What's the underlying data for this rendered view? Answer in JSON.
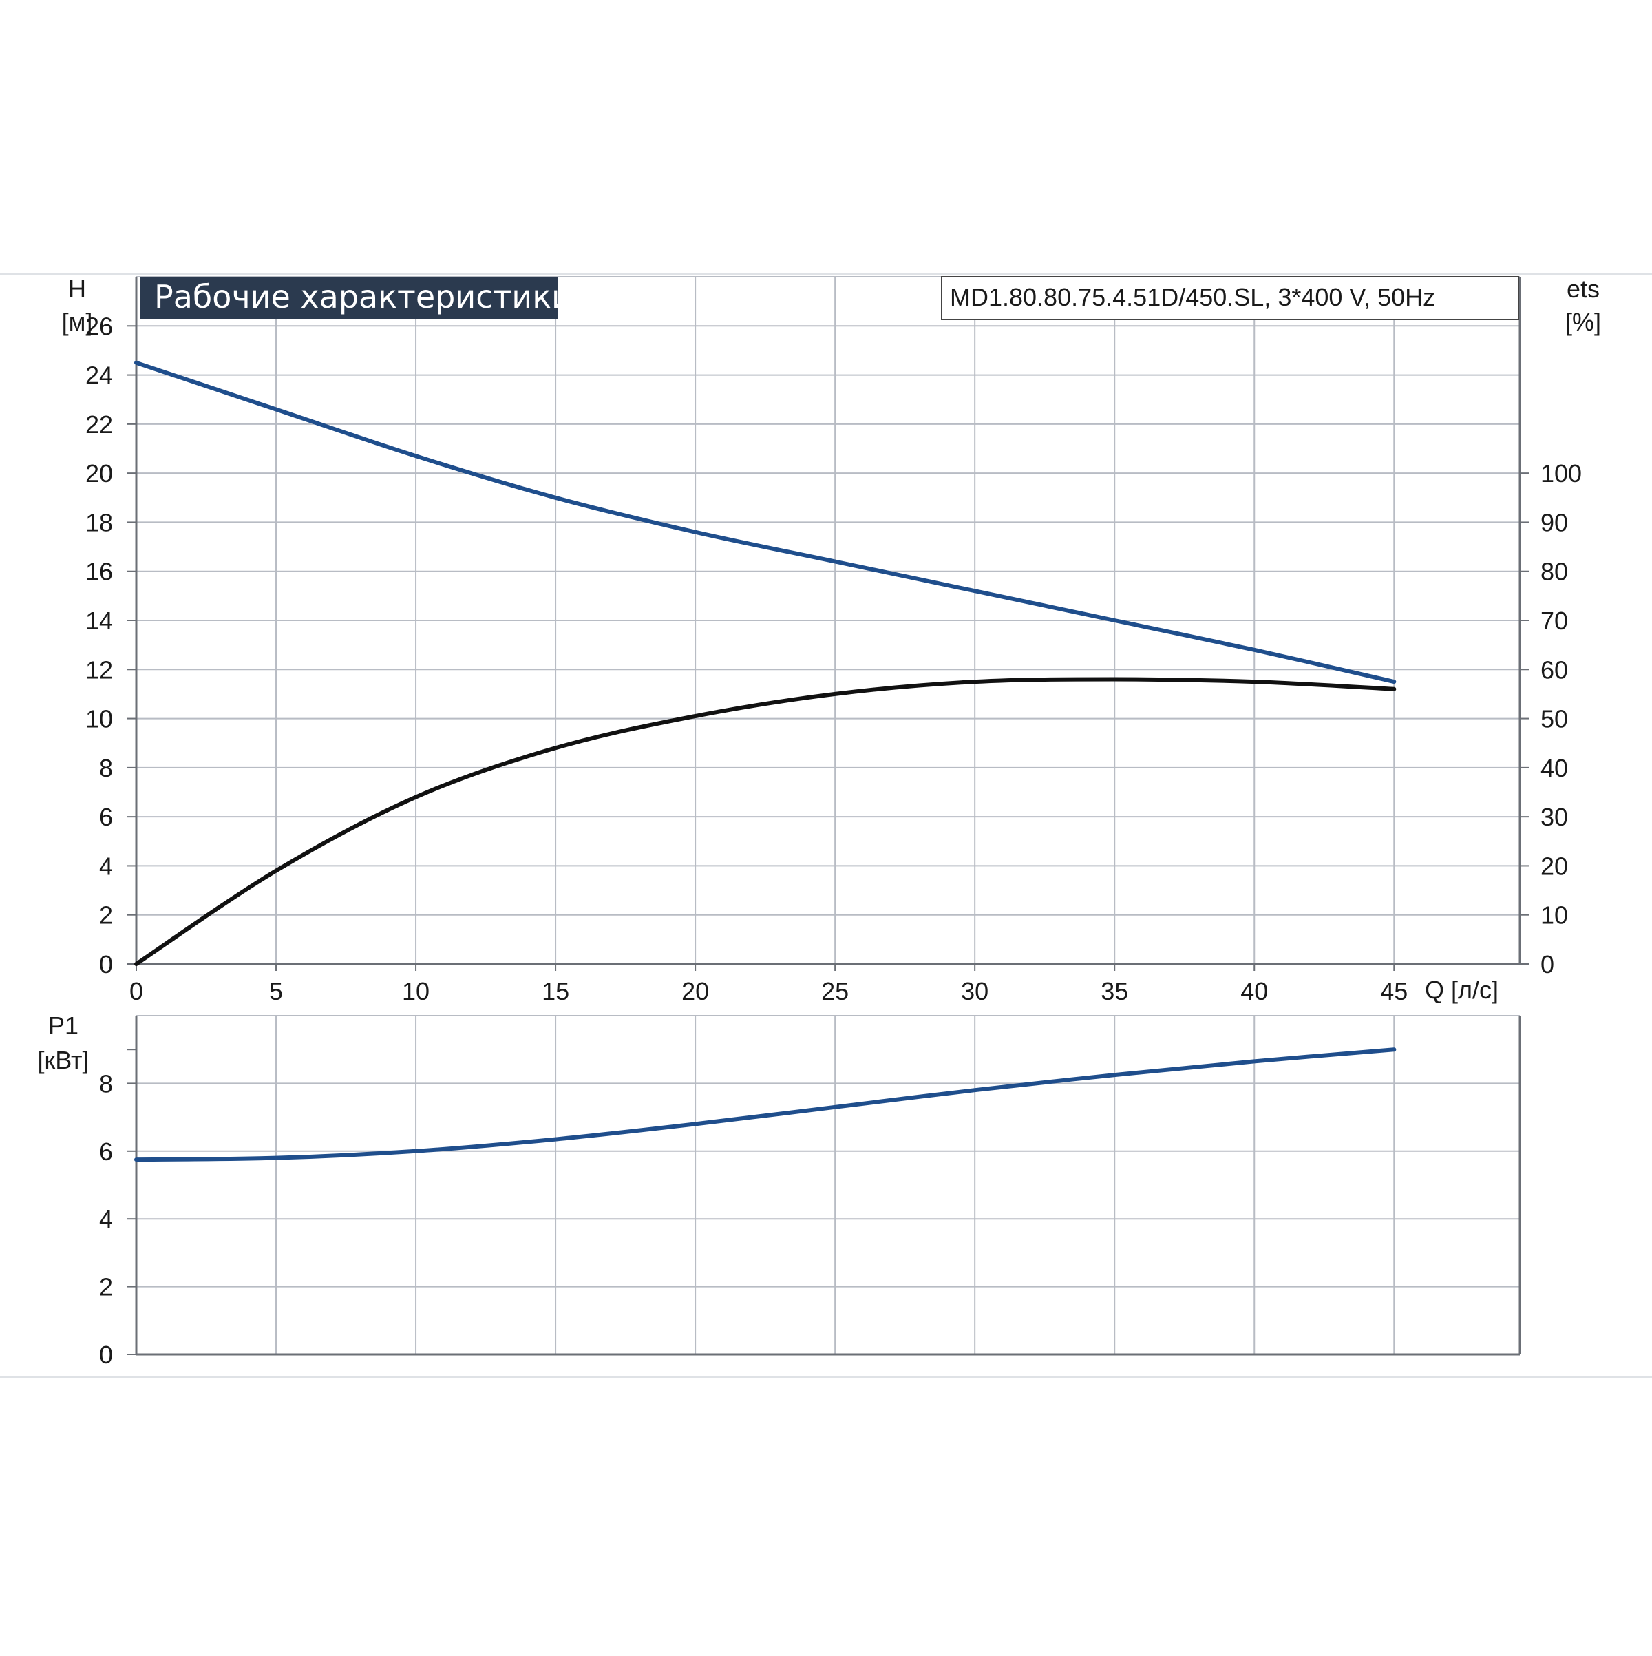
{
  "header": {
    "title": "Рабочие характеристики",
    "model": "MD1.80.80.75.4.51D/450.SL, 3*400 V, 50Hz"
  },
  "colors": {
    "head_curve": "#1f4e8c",
    "efficiency_curve": "#111111",
    "power_curve": "#1f4e8c",
    "title_bg": "#2b3a4f",
    "grid": "#b8bcc4",
    "frame": "#6b6f76"
  },
  "chart_data": [
    {
      "type": "line",
      "name": "performance-chart",
      "x_axis": {
        "label": "Q [л/с]",
        "range": [
          0,
          49.5
        ],
        "ticks": [
          0,
          5,
          10,
          15,
          20,
          25,
          30,
          35,
          40,
          45
        ]
      },
      "y_axis_left": {
        "label_top": "H",
        "label_unit": "[м]",
        "range": [
          0,
          28
        ],
        "ticks": [
          0,
          2,
          4,
          6,
          8,
          10,
          12,
          14,
          16,
          18,
          20,
          22,
          24,
          26
        ]
      },
      "y_axis_right": {
        "label_top": "ets",
        "label_unit": "[%]",
        "range": [
          0,
          140
        ],
        "ticks": [
          0,
          10,
          20,
          30,
          40,
          50,
          60,
          70,
          80,
          90,
          100
        ]
      },
      "grid": true,
      "series": [
        {
          "axis": "left",
          "x": [
            0,
            5,
            10,
            15,
            20,
            25,
            30,
            35,
            40,
            45
          ],
          "y": [
            24.5,
            22.6,
            20.7,
            19.0,
            17.6,
            16.4,
            15.2,
            14.0,
            12.8,
            11.5
          ]
        },
        {
          "axis": "right",
          "x": [
            0,
            5,
            10,
            15,
            20,
            25,
            30,
            35,
            40,
            45
          ],
          "y": [
            0,
            19,
            34,
            44,
            50.5,
            55,
            57.5,
            58,
            57.5,
            56
          ]
        }
      ]
    },
    {
      "type": "line",
      "name": "power-chart",
      "x_axis": {
        "range": [
          0,
          49.5
        ],
        "ticks": [
          0,
          5,
          10,
          15,
          20,
          25,
          30,
          35,
          40,
          45
        ]
      },
      "y_axis_left": {
        "label_top": "P1",
        "label_unit": "[кВт]",
        "range": [
          0,
          10
        ],
        "ticks": [
          0,
          2,
          4,
          6,
          8
        ]
      },
      "grid": true,
      "series": [
        {
          "axis": "left",
          "x": [
            0,
            5,
            10,
            15,
            20,
            25,
            30,
            35,
            40,
            45
          ],
          "y": [
            5.75,
            5.8,
            6.0,
            6.35,
            6.8,
            7.3,
            7.8,
            8.25,
            8.65,
            9.0
          ]
        }
      ]
    }
  ]
}
